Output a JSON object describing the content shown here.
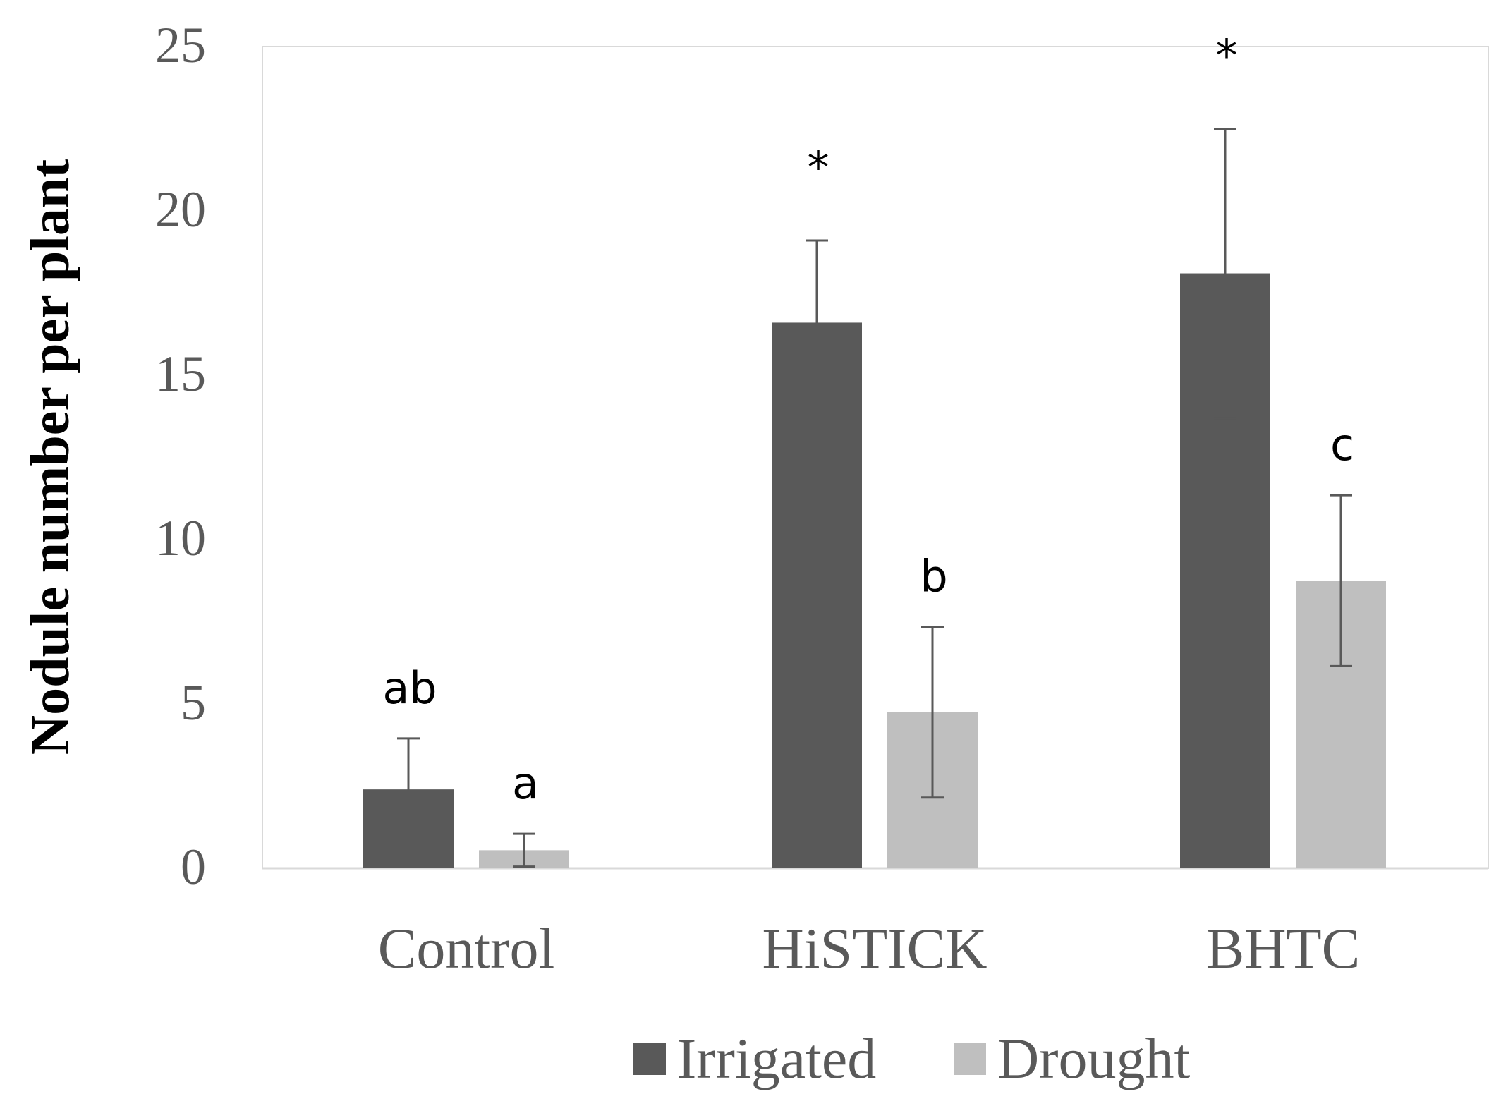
{
  "chart_data": {
    "type": "bar",
    "title": "",
    "xlabel": "",
    "ylabel": "Nodule number per plant",
    "ylim": [
      0,
      25
    ],
    "yticks": [
      0,
      5,
      10,
      15,
      20,
      25
    ],
    "grid": false,
    "legend_position": "bottom",
    "categories": [
      "Control",
      "HiSTICK",
      "BHTC"
    ],
    "series": [
      {
        "name": "Irrigated",
        "color": "#595959",
        "values": [
          2.4,
          16.6,
          18.1
        ],
        "errors": [
          1.55,
          2.5,
          4.4
        ],
        "annotations": [
          "ab",
          "*",
          "*"
        ]
      },
      {
        "name": "Drought",
        "color": "#bfbfbf",
        "values": [
          0.55,
          4.75,
          8.75
        ],
        "errors": [
          0.5,
          2.6,
          2.6
        ],
        "annotations": [
          "a",
          "b",
          "c"
        ]
      }
    ]
  }
}
